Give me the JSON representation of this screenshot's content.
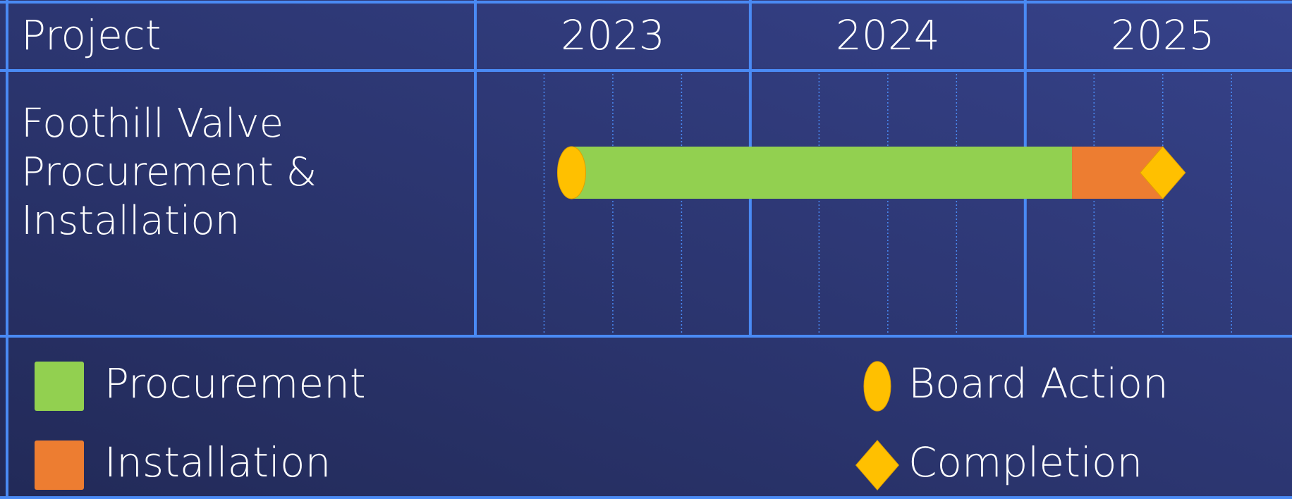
{
  "chart_data": {
    "type": "gantt",
    "row_header": "Project",
    "categories": [
      "Foothill Valve Procurement & Installation"
    ],
    "xlim": [
      2023,
      2025.97
    ],
    "xticks": [
      2023,
      2024,
      2025
    ],
    "series": [
      {
        "name": "Procurement",
        "kind": "bar",
        "color": "#92d050",
        "start": [
          2023.35
        ],
        "end": [
          2025.17
        ]
      },
      {
        "name": "Installation",
        "kind": "bar",
        "color": "#ed7d31",
        "start": [
          2025.17
        ],
        "end": [
          2025.5
        ]
      },
      {
        "name": "Board Action",
        "kind": "milestone",
        "marker": "ellipse",
        "color": "#ffc000",
        "values": [
          2023.35
        ]
      },
      {
        "name": "Completion",
        "kind": "milestone",
        "marker": "diamond",
        "color": "#ffc000",
        "values": [
          2025.5
        ]
      }
    ]
  }
}
